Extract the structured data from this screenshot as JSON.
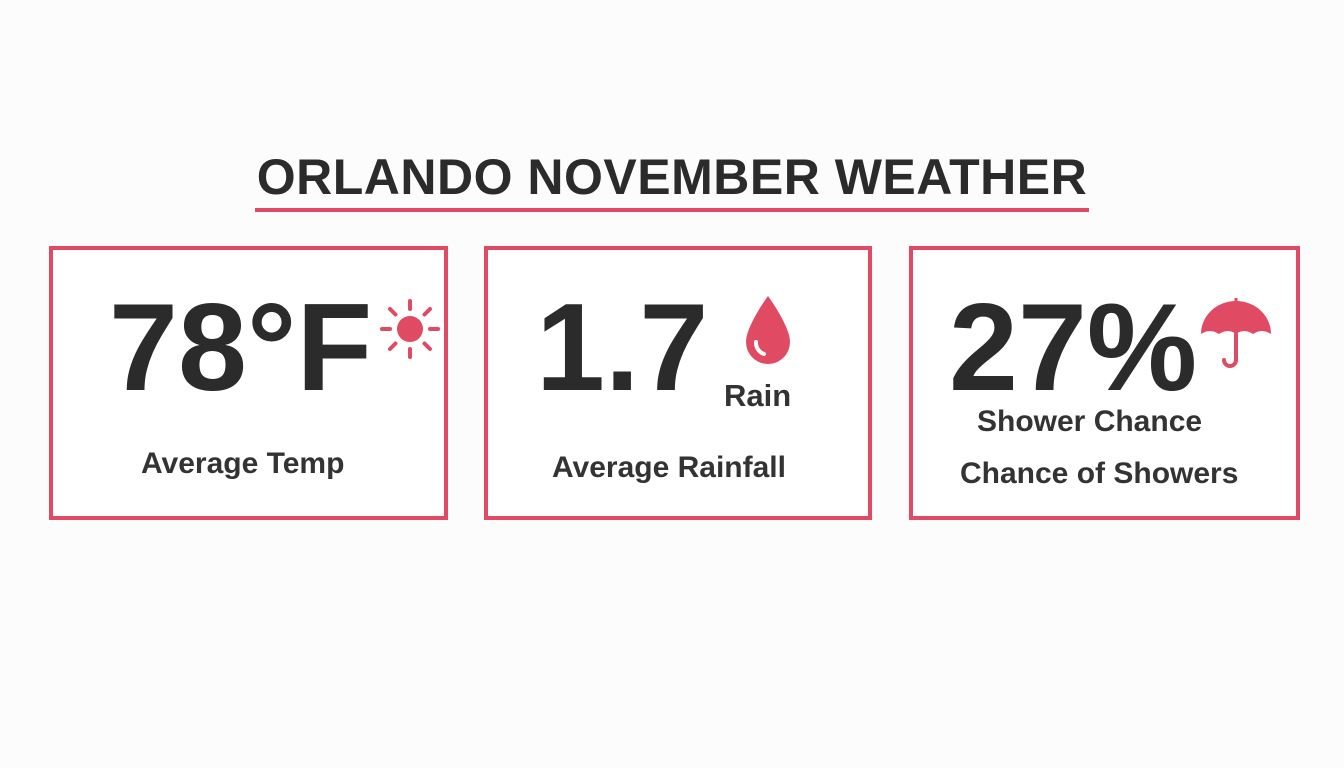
{
  "title": "ORLANDO NOVEMBER WEATHER",
  "accent_color": "#e04a63",
  "cards": [
    {
      "value": "78°F",
      "icon": "sun-icon",
      "label": "Average Temp"
    },
    {
      "value": "1.7",
      "icon": "raindrop-icon",
      "unit": "Rain",
      "label": "Average Rainfall"
    },
    {
      "value": "27%",
      "icon": "umbrella-icon",
      "sublabel": "Shower Chance",
      "label": "Chance of Showers"
    }
  ]
}
